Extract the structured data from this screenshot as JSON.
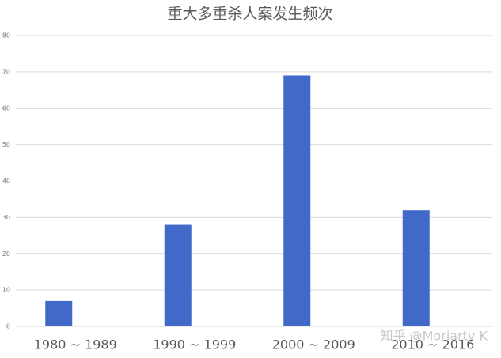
{
  "chart_data": {
    "type": "bar",
    "title": "重大多重杀人案发生频次",
    "categories": [
      "1980 ~ 1989",
      "1990 ~ 1999",
      "2000 ~ 2009",
      "2010 ~ 2016"
    ],
    "values": [
      7,
      28,
      69,
      32
    ],
    "color": "#4169c9",
    "ylim": [
      0,
      80
    ],
    "yticks": [
      0,
      10,
      20,
      30,
      40,
      50,
      60,
      70,
      80
    ],
    "grid": true,
    "watermark": "知乎 @Moriarty K"
  }
}
